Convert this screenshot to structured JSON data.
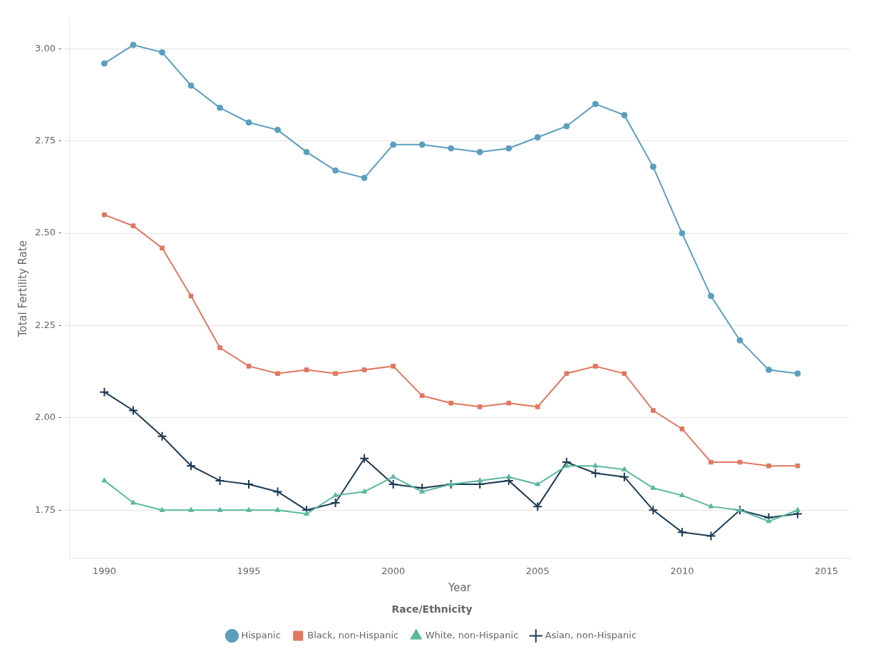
{
  "chart_data": {
    "type": "line",
    "xlabel": "Year",
    "ylabel": "Total Fertility Rate",
    "legend_title": "Race/Ethnicity",
    "x": [
      1990,
      1991,
      1992,
      1993,
      1994,
      1995,
      1996,
      1997,
      1998,
      1999,
      2000,
      2001,
      2002,
      2003,
      2004,
      2005,
      2006,
      2007,
      2008,
      2009,
      2010,
      2011,
      2012,
      2013,
      2014
    ],
    "series": [
      {
        "name": "Hispanic",
        "color": "#5b9fbf",
        "marker": "circle",
        "values": [
          2.96,
          3.01,
          2.99,
          2.9,
          2.84,
          2.8,
          2.78,
          2.72,
          2.67,
          2.65,
          2.74,
          2.74,
          2.73,
          2.72,
          2.73,
          2.76,
          2.79,
          2.85,
          2.82,
          2.68,
          2.5,
          2.33,
          2.21,
          2.13,
          2.12
        ]
      },
      {
        "name": "Black, non-Hispanic",
        "color": "#e07860",
        "marker": "square",
        "values": [
          2.55,
          2.52,
          2.46,
          2.33,
          2.19,
          2.14,
          2.12,
          2.13,
          2.12,
          2.13,
          2.14,
          2.06,
          2.04,
          2.03,
          2.04,
          2.03,
          2.12,
          2.14,
          2.12,
          2.02,
          1.97,
          1.88,
          1.88,
          1.87,
          1.87
        ]
      },
      {
        "name": "White, non-Hispanic",
        "color": "#5ab89e",
        "marker": "triangle",
        "values": [
          1.83,
          1.77,
          1.75,
          1.75,
          1.75,
          1.75,
          1.75,
          1.74,
          1.79,
          1.8,
          1.84,
          1.8,
          1.82,
          1.83,
          1.84,
          1.82,
          1.87,
          1.87,
          1.86,
          1.81,
          1.79,
          1.76,
          1.75,
          1.72,
          1.75
        ]
      },
      {
        "name": "Asian, non-Hispanic",
        "color": "#1c3a52",
        "marker": "cross",
        "values": [
          2.07,
          2.02,
          1.95,
          1.87,
          1.83,
          1.82,
          1.8,
          1.75,
          1.77,
          1.89,
          1.82,
          1.81,
          1.82,
          1.82,
          1.83,
          1.76,
          1.88,
          1.85,
          1.84,
          1.75,
          1.69,
          1.68,
          1.75,
          1.73,
          1.74
        ]
      }
    ],
    "xlim": [
      1988.8,
      2015.8
    ],
    "xticks": [
      1990,
      1995,
      2000,
      2005,
      2010,
      2015
    ],
    "ylim": [
      1.62,
      3.08
    ],
    "yticks": [
      {
        "value": 1.75,
        "label": "1.75 -"
      },
      {
        "value": 2.0,
        "label": "2.00 -"
      },
      {
        "value": 2.25,
        "label": "2.25 -"
      },
      {
        "value": 2.5,
        "label": "2.50 -"
      },
      {
        "value": 2.75,
        "label": "2.75 -"
      },
      {
        "value": 3.0,
        "label": "3.00 -"
      }
    ],
    "grid": "y",
    "legend": "bottom"
  }
}
